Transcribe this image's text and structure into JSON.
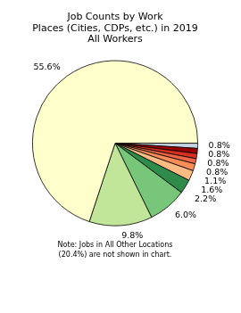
{
  "chart_data": {
    "type": "pie",
    "title": [
      "Job Counts by Work",
      "Places (Cities, CDPs, etc.) in 2019",
      "All Workers"
    ],
    "annotations": [
      "Note: Jobs in All Other Locations",
      "(20.4%) are not shown in chart."
    ],
    "values": [
      55.6,
      9.8,
      6.0,
      2.2,
      1.6,
      1.1,
      0.8,
      0.8,
      0.8,
      0.8
    ],
    "value_labels": [
      "55.6%",
      "9.8%",
      "6.0%",
      "2.2%",
      "1.6%",
      "1.1%",
      "0.8%",
      "0.8%",
      "0.8%",
      "0.8%"
    ],
    "colors": [
      "#ffffcc",
      "#c2e699",
      "#78c679",
      "#2e8b4a",
      "#fdbb84",
      "#fc8d59",
      "#ef6548",
      "#d7301f",
      "#990000",
      "#c6d4e6"
    ],
    "data_labels": true
  }
}
